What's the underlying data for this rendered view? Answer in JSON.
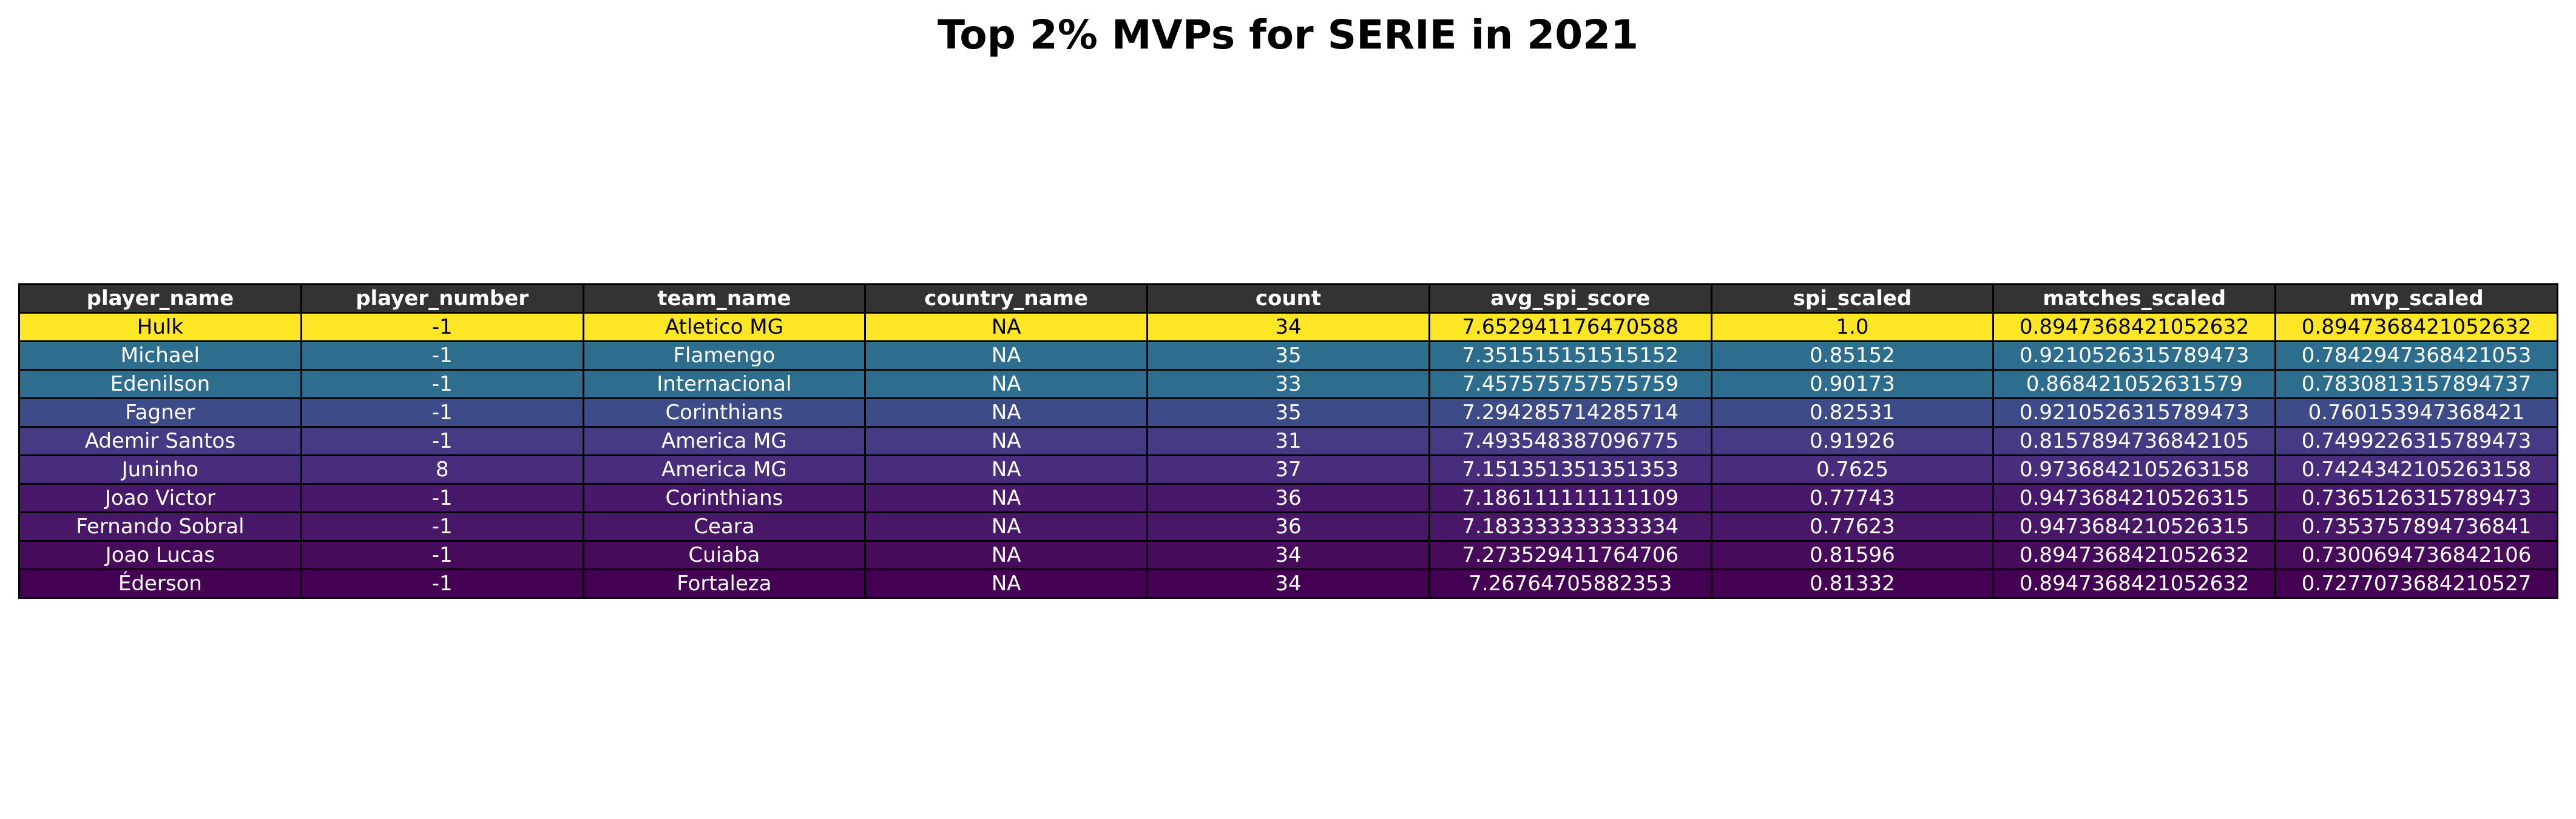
{
  "title": "Top 2% MVPs for SERIE in 2021",
  "chart_data": {
    "type": "table",
    "title": "Top 2% MVPs for SERIE in 2021",
    "columns": [
      "player_name",
      "player_number",
      "team_name",
      "country_name",
      "count",
      "avg_spi_score",
      "spi_scaled",
      "matches_scaled",
      "mvp_scaled"
    ],
    "rows": [
      {
        "cells": [
          "Hulk",
          "-1",
          "Atletico MG",
          "NA",
          "34",
          "7.652941176470588",
          "1.0",
          "0.8947368421052632",
          "0.8947368421052632"
        ],
        "bg": "#fde725",
        "fg": "#000000"
      },
      {
        "cells": [
          "Michael",
          "-1",
          "Flamengo",
          "NA",
          "35",
          "7.351515151515152",
          "0.85152",
          "0.9210526315789473",
          "0.7842947368421053"
        ],
        "bg": "#2d6e8e",
        "fg": "#ffffff"
      },
      {
        "cells": [
          "Edenilson",
          "-1",
          "Internacional",
          "NA",
          "33",
          "7.457575757575759",
          "0.90173",
          "0.868421052631579",
          "0.7830813157894737"
        ],
        "bg": "#2d6d8e",
        "fg": "#ffffff"
      },
      {
        "cells": [
          "Fagner",
          "-1",
          "Corinthians",
          "NA",
          "35",
          "7.294285714285714",
          "0.82531",
          "0.9210526315789473",
          "0.760153947368421"
        ],
        "bg": "#3d4b89",
        "fg": "#ffffff"
      },
      {
        "cells": [
          "Ademir Santos",
          "-1",
          "America MG",
          "NA",
          "31",
          "7.493548387096775",
          "0.91926",
          "0.8157894736842105",
          "0.7499226315789473"
        ],
        "bg": "#453a84",
        "fg": "#ffffff"
      },
      {
        "cells": [
          "Juninho",
          "8",
          "America MG",
          "NA",
          "37",
          "7.151351351351353",
          "0.7625",
          "0.9736842105263158",
          "0.7424342105263158"
        ],
        "bg": "#472d7b",
        "fg": "#ffffff"
      },
      {
        "cells": [
          "Joao Victor",
          "-1",
          "Corinthians",
          "NA",
          "36",
          "7.186111111111109",
          "0.77743",
          "0.9473684210526315",
          "0.7365126315789473"
        ],
        "bg": "#48196b",
        "fg": "#ffffff"
      },
      {
        "cells": [
          "Fernando Sobral",
          "-1",
          "Ceara",
          "NA",
          "36",
          "7.183333333333334",
          "0.77623",
          "0.9473684210526315",
          "0.7353757894736841"
        ],
        "bg": "#481768",
        "fg": "#ffffff"
      },
      {
        "cells": [
          "Joao Lucas",
          "-1",
          "Cuiaba",
          "NA",
          "34",
          "7.273529411764706",
          "0.81596",
          "0.8947368421052632",
          "0.7300694736842106"
        ],
        "bg": "#470b5c",
        "fg": "#ffffff"
      },
      {
        "cells": [
          "Éderson",
          "-1",
          "Fortaleza",
          "NA",
          "34",
          "7.26764705882353",
          "0.81332",
          "0.8947368421052632",
          "0.7277073684210527"
        ],
        "bg": "#440154",
        "fg": "#ffffff"
      }
    ],
    "header_bg": "#333333",
    "header_fg": "#ffffff",
    "colormap": "viridis"
  }
}
